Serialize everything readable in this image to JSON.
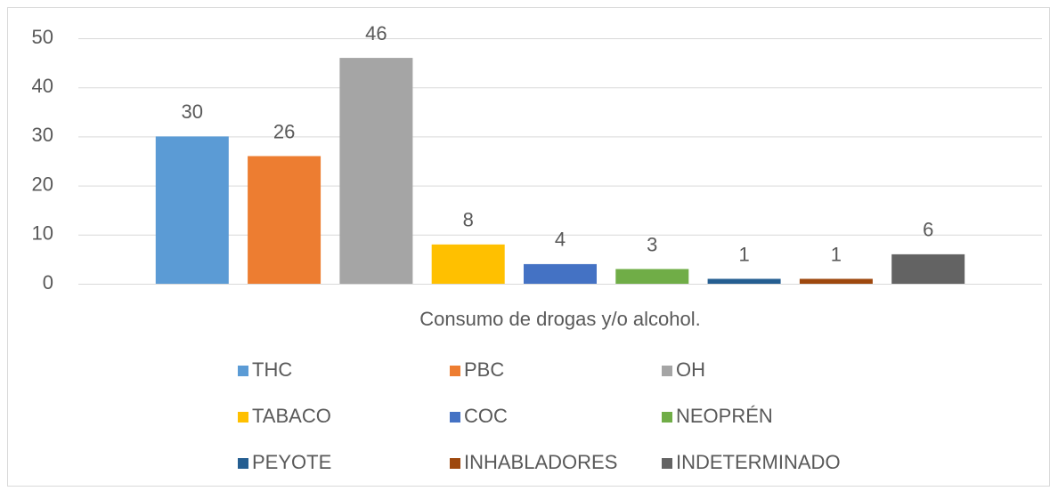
{
  "chart_data": {
    "type": "bar",
    "categories": [
      "Consumo de drogas y/o alcohol."
    ],
    "series": [
      {
        "name": "THC",
        "color": "#5b9bd5",
        "values": [
          30
        ]
      },
      {
        "name": "PBC",
        "color": "#ed7d31",
        "values": [
          26
        ]
      },
      {
        "name": "OH",
        "color": "#a5a5a5",
        "values": [
          46
        ]
      },
      {
        "name": "TABACO",
        "color": "#ffc000",
        "values": [
          8
        ]
      },
      {
        "name": "COC",
        "color": "#4472c4",
        "values": [
          4
        ]
      },
      {
        "name": "NEOPRÉN",
        "color": "#70ad47",
        "values": [
          3
        ]
      },
      {
        "name": "PEYOTE",
        "color": "#255e91",
        "values": [
          1
        ]
      },
      {
        "name": "INHABLADORES",
        "color": "#9e480e",
        "values": [
          1
        ]
      },
      {
        "name": "INDETERMINADO",
        "color": "#636363",
        "values": [
          6
        ]
      }
    ],
    "ylim": [
      0,
      50
    ],
    "yticks": [
      0,
      10,
      20,
      30,
      40,
      50
    ],
    "grid": true,
    "legend": "bottom"
  }
}
